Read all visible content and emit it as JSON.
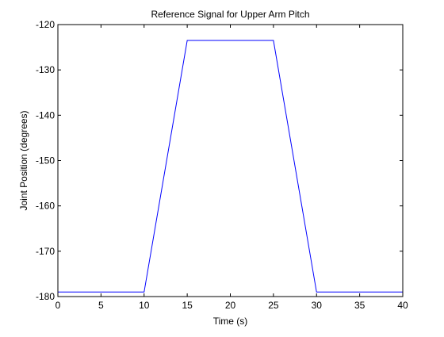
{
  "chart_data": {
    "type": "line",
    "title": "Reference Signal for Upper Arm Pitch",
    "xlabel": "Time (s)",
    "ylabel": "Joint Position (degrees)",
    "xlim": [
      0,
      40
    ],
    "ylim": [
      -180,
      -120
    ],
    "xticks": [
      0,
      5,
      10,
      15,
      20,
      25,
      30,
      35,
      40
    ],
    "yticks": [
      -180,
      -170,
      -160,
      -150,
      -140,
      -130,
      -120
    ],
    "xtick_labels": [
      "0",
      "5",
      "10",
      "15",
      "20",
      "25",
      "30",
      "35",
      "40"
    ],
    "ytick_labels": [
      "-180",
      "-170",
      "-160",
      "-150",
      "-140",
      "-130",
      "-120"
    ],
    "grid": false,
    "legend": "none",
    "series": [
      {
        "color": "#0000ff",
        "x": [
          0,
          10,
          15,
          25,
          30,
          40
        ],
        "y": [
          -179,
          -179,
          -123.5,
          -123.5,
          -179,
          -179
        ]
      }
    ]
  }
}
